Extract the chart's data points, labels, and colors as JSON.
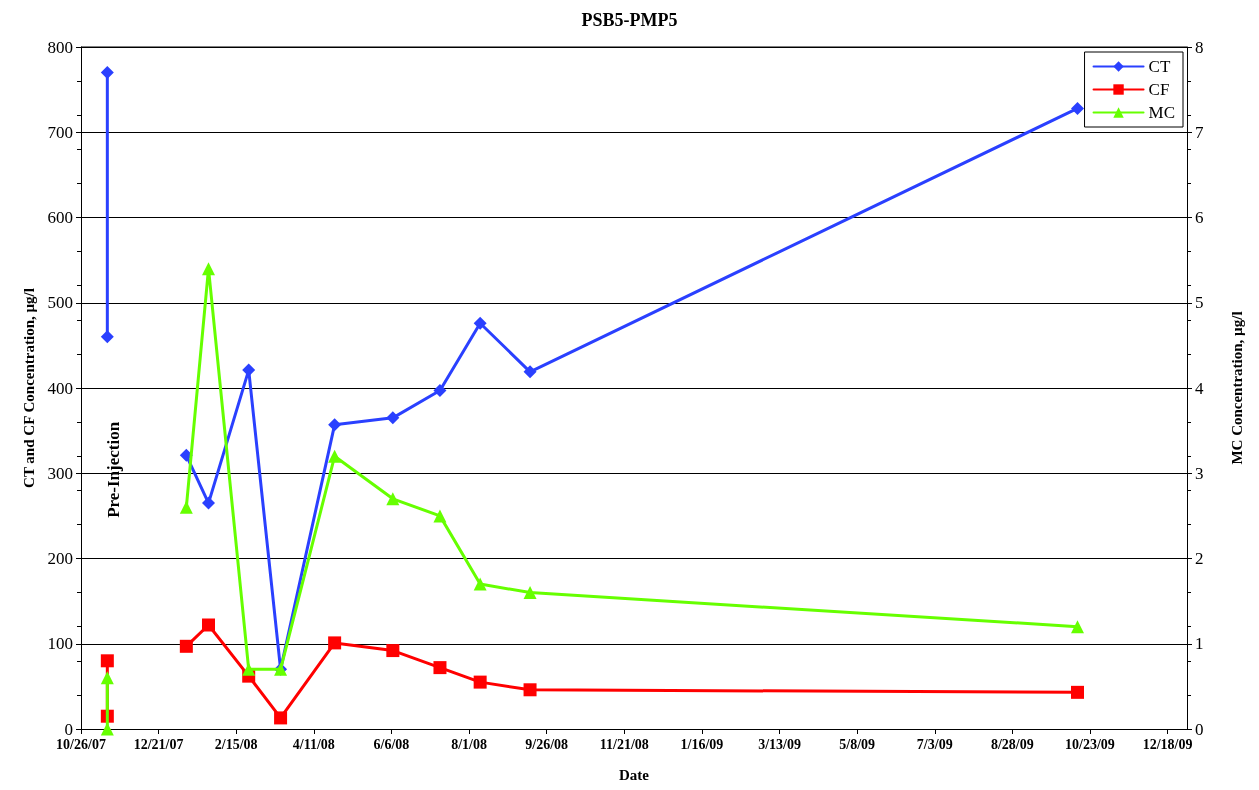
{
  "chart_data": {
    "type": "line",
    "title": "PSB5-PMP5",
    "xlabel": "Date",
    "ylabel": "CT and CF Concentration, µg/l",
    "y2label": "MC Concentration, µg/l",
    "xlim": [
      "2007-10-26",
      "2010-01-01"
    ],
    "xticks": [
      {
        "value": "2007-10-26",
        "label": "10/26/07"
      },
      {
        "value": "2007-12-21",
        "label": "12/21/07"
      },
      {
        "value": "2008-02-15",
        "label": "2/15/08"
      },
      {
        "value": "2008-04-11",
        "label": "4/11/08"
      },
      {
        "value": "2008-06-06",
        "label": "6/6/08"
      },
      {
        "value": "2008-08-01",
        "label": "8/1/08"
      },
      {
        "value": "2008-09-26",
        "label": "9/26/08"
      },
      {
        "value": "2008-11-21",
        "label": "11/21/08"
      },
      {
        "value": "2009-01-16",
        "label": "1/16/09"
      },
      {
        "value": "2009-03-13",
        "label": "3/13/09"
      },
      {
        "value": "2009-05-08",
        "label": "5/8/09"
      },
      {
        "value": "2009-07-03",
        "label": "7/3/09"
      },
      {
        "value": "2009-08-28",
        "label": "8/28/09"
      },
      {
        "value": "2009-10-23",
        "label": "10/23/09"
      },
      {
        "value": "2009-12-18",
        "label": "12/18/09"
      }
    ],
    "ylim": [
      0,
      800
    ],
    "yticks": [
      0,
      100,
      200,
      300,
      400,
      500,
      600,
      700,
      800
    ],
    "y2lim": [
      0,
      8
    ],
    "y2ticks": [
      0,
      1,
      2,
      3,
      4,
      5,
      6,
      7,
      8
    ],
    "grid": "y",
    "legend": "top right",
    "line_style": "solid",
    "x": [
      "2008-01-10",
      "2008-01-26",
      "2008-02-24",
      "2008-03-18",
      "2008-04-26",
      "2008-06-07",
      "2008-07-11",
      "2008-08-09",
      "2008-09-14",
      "2009-10-14"
    ],
    "series": [
      {
        "name": "CT",
        "color": "#2a40ff",
        "marker": "diamond",
        "values": [
          321,
          265,
          421,
          70,
          357,
          365,
          397,
          476,
          419,
          728
        ]
      },
      {
        "name": "CF",
        "color": "#ff0000",
        "marker": "square",
        "values": [
          97,
          122,
          62,
          13,
          101,
          92,
          72,
          55,
          46,
          43
        ]
      },
      {
        "name": "MC",
        "color": "#66ff00",
        "marker": "triangle",
        "axis": "y2",
        "values": [
          2.6,
          5.4,
          0.7,
          0.7,
          3.2,
          2.7,
          2.5,
          1.7,
          1.6,
          1.2
        ]
      },
      {
        "color": "#2a40ff",
        "marker": "diamond",
        "x": [
          "2007-11-14",
          "2007-11-14"
        ],
        "values": [
          770,
          460
        ]
      },
      {
        "color": "#ff0000",
        "marker": "square",
        "x": [
          "2007-11-14",
          "2007-11-14"
        ],
        "values": [
          80,
          15
        ]
      },
      {
        "color": "#66ff00",
        "marker": "triangle",
        "axis": "y2",
        "x": [
          "2007-11-14",
          "2007-11-14"
        ],
        "values": [
          0.6,
          0
        ]
      }
    ],
    "annotations": [
      "Pre-Injection"
    ]
  }
}
